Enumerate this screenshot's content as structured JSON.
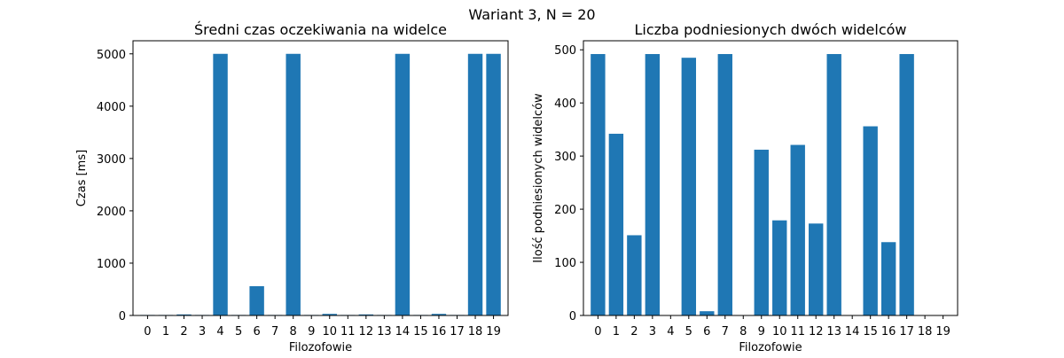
{
  "suptitle": "Wariant 3, N = 20",
  "bar_color": "#1f77b4",
  "chart_data": [
    {
      "type": "bar",
      "title": "Średni czas oczekiwania na widelce",
      "xlabel": "Filozofowie",
      "ylabel": "Czas [ms]",
      "categories": [
        "0",
        "1",
        "2",
        "3",
        "4",
        "5",
        "6",
        "7",
        "8",
        "9",
        "10",
        "11",
        "12",
        "13",
        "14",
        "15",
        "16",
        "17",
        "18",
        "19"
      ],
      "values": [
        10,
        10,
        20,
        10,
        5000,
        10,
        560,
        10,
        5000,
        10,
        30,
        10,
        20,
        10,
        5000,
        10,
        30,
        10,
        5000,
        5000
      ],
      "ylim": [
        0,
        5250
      ],
      "yticks": [
        0,
        1000,
        2000,
        3000,
        4000,
        5000
      ],
      "grid": false,
      "legend": "none"
    },
    {
      "type": "bar",
      "title": "Liczba podniesionych dwóch widelców",
      "xlabel": "Filozofowie",
      "ylabel": "Ilość podniesionych widelców",
      "categories": [
        "0",
        "1",
        "2",
        "3",
        "4",
        "5",
        "6",
        "7",
        "8",
        "9",
        "10",
        "11",
        "12",
        "13",
        "14",
        "15",
        "16",
        "17",
        "18",
        "19"
      ],
      "values": [
        492,
        342,
        151,
        492,
        0,
        485,
        8,
        492,
        0,
        312,
        179,
        321,
        173,
        492,
        0,
        356,
        138,
        492,
        0,
        0
      ],
      "ylim": [
        0,
        517
      ],
      "yticks": [
        0,
        100,
        200,
        300,
        400,
        500
      ],
      "grid": false,
      "legend": "none"
    }
  ]
}
